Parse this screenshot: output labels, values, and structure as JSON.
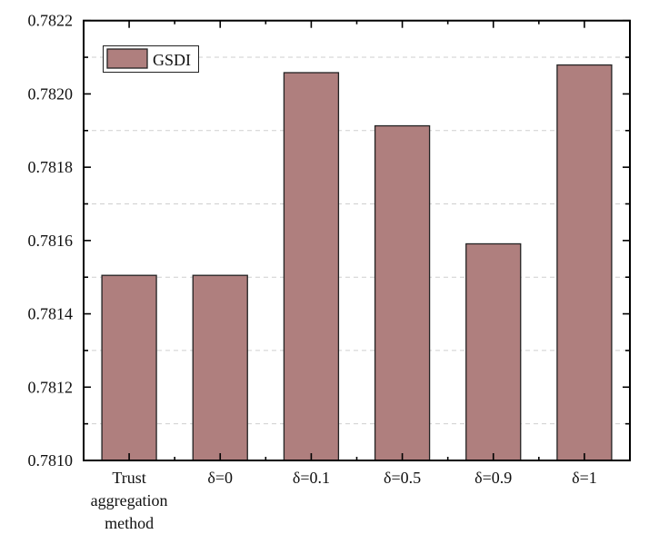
{
  "chart_data": {
    "type": "bar",
    "title": "",
    "xlabel": "",
    "ylabel": "",
    "categories": [
      [
        "Trust",
        "aggregation",
        "method"
      ],
      [
        "δ=0"
      ],
      [
        "δ=0.1"
      ],
      [
        "δ=0.5"
      ],
      [
        "δ=0.9"
      ],
      [
        "δ=1"
      ]
    ],
    "series": [
      {
        "name": "GSDI",
        "values": [
          0.781505,
          0.781505,
          0.782058,
          0.781913,
          0.781591,
          0.782079
        ],
        "color": "#AF7F7E"
      }
    ],
    "ylim": [
      0.781,
      0.7822
    ],
    "yticks": [
      "0.7810",
      "0.7812",
      "0.7814",
      "0.7816",
      "0.7818",
      "0.7820",
      "0.7822"
    ],
    "grid": "dashed horizontal at minor ticks",
    "legend": {
      "position": "top-left",
      "label": "GSDI"
    }
  }
}
